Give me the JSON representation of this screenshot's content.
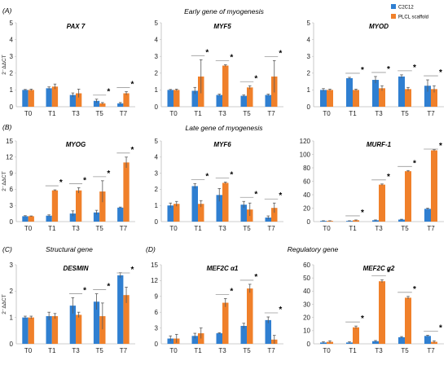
{
  "section_labels": {
    "A": "(A)",
    "B": "(B)",
    "C": "(C)",
    "D": "(D)"
  },
  "section_titles": {
    "A": "Early gene of myogenesis",
    "B": "Late gene of myogenesis",
    "C": "Structural gene",
    "D": "Regulatory gene"
  },
  "y_axis_label": "2⁻ΔΔCT",
  "legend": [
    {
      "name": "C2C12",
      "color": "#2f7fd1"
    },
    {
      "name": "PLCL scaffold",
      "color": "#f0802a"
    }
  ],
  "colors": {
    "c2c12": "#2f7fd1",
    "plcl": "#f0802a",
    "error": "#595959",
    "sig_line": "#9a9a9a"
  },
  "chart_data": [
    {
      "id": "pax7",
      "type": "bar",
      "title": "PAX 7",
      "categories": [
        "T0",
        "T1",
        "T3",
        "T5",
        "T7"
      ],
      "ylim": [
        0,
        5
      ],
      "yticks": [
        0,
        1,
        2,
        3,
        4,
        5
      ],
      "series": [
        {
          "name": "C2C12",
          "values": [
            1.0,
            1.1,
            0.7,
            0.35,
            0.2
          ],
          "errors": [
            0.03,
            0.08,
            0.12,
            0.1,
            0.05
          ]
        },
        {
          "name": "PLCL scaffold",
          "values": [
            1.0,
            1.2,
            0.8,
            0.2,
            0.8
          ],
          "errors": [
            0.05,
            0.15,
            0.25,
            0.05,
            0.1
          ]
        }
      ],
      "significant": [
        false,
        false,
        false,
        true,
        true
      ]
    },
    {
      "id": "myf5",
      "type": "bar",
      "title": "MYF5",
      "categories": [
        "T0",
        "T1",
        "T3",
        "T5",
        "T7"
      ],
      "ylim": [
        0,
        5
      ],
      "yticks": [
        0,
        1,
        2,
        3,
        4,
        5
      ],
      "series": [
        {
          "name": "C2C12",
          "values": [
            1.0,
            0.95,
            0.7,
            0.65,
            0.7
          ],
          "errors": [
            0.03,
            0.2,
            0.05,
            0.05,
            0.05
          ]
        },
        {
          "name": "PLCL scaffold",
          "values": [
            1.0,
            1.8,
            2.45,
            1.15,
            1.8
          ],
          "errors": [
            0.05,
            1.0,
            0.05,
            0.1,
            0.95
          ]
        }
      ],
      "significant": [
        false,
        true,
        true,
        true,
        true
      ]
    },
    {
      "id": "myod",
      "type": "bar",
      "title": "MYOD",
      "categories": [
        "T0",
        "T1",
        "T3",
        "T5",
        "T7"
      ],
      "ylim": [
        0,
        5
      ],
      "yticks": [
        0,
        1,
        2,
        3,
        4,
        5
      ],
      "series": [
        {
          "name": "C2C12",
          "values": [
            1.0,
            1.7,
            1.6,
            1.8,
            1.25
          ],
          "errors": [
            0.08,
            0.05,
            0.2,
            0.1,
            0.35
          ]
        },
        {
          "name": "PLCL scaffold",
          "values": [
            1.0,
            1.0,
            1.1,
            1.05,
            1.05
          ],
          "errors": [
            0.05,
            0.05,
            0.15,
            0.1,
            0.2
          ]
        }
      ],
      "significant": [
        false,
        true,
        true,
        true,
        true
      ]
    },
    {
      "id": "myog",
      "type": "bar",
      "title": "MYOG",
      "categories": [
        "T0",
        "T1",
        "T3",
        "T5",
        "T7"
      ],
      "ylim": [
        0,
        15
      ],
      "yticks": [
        0,
        3,
        6,
        9,
        12,
        15
      ],
      "series": [
        {
          "name": "C2C12",
          "values": [
            1.0,
            1.1,
            1.5,
            1.7,
            2.6
          ],
          "errors": [
            0.1,
            0.15,
            0.5,
            0.4,
            0.1
          ]
        },
        {
          "name": "PLCL scaffold",
          "values": [
            1.0,
            5.8,
            5.8,
            5.6,
            11.0
          ],
          "errors": [
            0.05,
            0.1,
            0.5,
            2.0,
            1.0
          ]
        }
      ],
      "significant": [
        false,
        true,
        true,
        true,
        true
      ]
    },
    {
      "id": "myf6",
      "type": "bar",
      "title": "MYF6",
      "categories": [
        "T0",
        "T1",
        "T3",
        "T5",
        "T7"
      ],
      "ylim": [
        0,
        5
      ],
      "yticks": [
        0,
        1,
        2,
        3,
        4,
        5
      ],
      "series": [
        {
          "name": "C2C12",
          "values": [
            1.0,
            2.2,
            1.65,
            1.05,
            0.25
          ],
          "errors": [
            0.15,
            0.15,
            0.4,
            0.2,
            0.1
          ]
        },
        {
          "name": "PLCL scaffold",
          "values": [
            1.1,
            1.1,
            2.4,
            0.75,
            0.85
          ],
          "errors": [
            0.15,
            0.2,
            0.05,
            0.4,
            0.3
          ]
        }
      ],
      "significant": [
        false,
        true,
        true,
        true,
        true
      ]
    },
    {
      "id": "murf1",
      "type": "bar",
      "title": "MURF-1",
      "categories": [
        "T0",
        "T1",
        "T3",
        "T5",
        "T7"
      ],
      "ylim": [
        0,
        120
      ],
      "yticks": [
        0,
        20,
        40,
        60,
        80,
        100,
        120
      ],
      "series": [
        {
          "name": "C2C12",
          "values": [
            1,
            1,
            2,
            3,
            19
          ],
          "errors": [
            0.3,
            0.3,
            0.5,
            0.5,
            1
          ]
        },
        {
          "name": "PLCL scaffold",
          "values": [
            1,
            2,
            55,
            75,
            106
          ],
          "errors": [
            0.3,
            0.5,
            1,
            1,
            1
          ]
        }
      ],
      "significant": [
        false,
        true,
        true,
        true,
        true
      ]
    },
    {
      "id": "desmin",
      "type": "bar",
      "title": "DESMIN",
      "categories": [
        "T0",
        "T1",
        "T3",
        "T5",
        "T7"
      ],
      "ylim": [
        0,
        3
      ],
      "yticks": [
        0,
        1,
        2,
        3
      ],
      "series": [
        {
          "name": "C2C12",
          "values": [
            1.0,
            1.05,
            1.45,
            1.6,
            2.6
          ],
          "errors": [
            0.05,
            0.15,
            0.3,
            0.3,
            0.1
          ]
        },
        {
          "name": "PLCL scaffold",
          "values": [
            1.0,
            1.05,
            1.1,
            1.05,
            1.85
          ],
          "errors": [
            0.05,
            0.1,
            0.1,
            0.5,
            0.3
          ]
        }
      ],
      "significant": [
        false,
        false,
        true,
        true,
        true
      ]
    },
    {
      "id": "mef2c_a1",
      "type": "bar",
      "title": "MEF2C α1",
      "categories": [
        "T0",
        "T1",
        "T3",
        "T5",
        "T7"
      ],
      "ylim": [
        0,
        15
      ],
      "yticks": [
        0,
        3,
        6,
        9,
        12,
        15
      ],
      "series": [
        {
          "name": "C2C12",
          "values": [
            1.0,
            1.5,
            2.0,
            3.4,
            4.5
          ],
          "errors": [
            0.5,
            0.5,
            0.1,
            0.5,
            0.6
          ]
        },
        {
          "name": "PLCL scaffold",
          "values": [
            1.0,
            2.0,
            7.8,
            10.5,
            0.8
          ],
          "errors": [
            0.8,
            1.0,
            0.8,
            0.8,
            0.8
          ]
        }
      ],
      "significant": [
        false,
        false,
        true,
        true,
        true
      ]
    },
    {
      "id": "mef2c_a2",
      "type": "bar",
      "title": "MEF2C α2",
      "categories": [
        "T0",
        "T1",
        "T3",
        "T5",
        "T7"
      ],
      "ylim": [
        0,
        60
      ],
      "yticks": [
        0,
        10,
        20,
        30,
        40,
        50,
        60
      ],
      "series": [
        {
          "name": "C2C12",
          "values": [
            1,
            1,
            2,
            5,
            6
          ],
          "errors": [
            0.5,
            0.5,
            0.5,
            0.5,
            0.5
          ]
        },
        {
          "name": "PLCL scaffold",
          "values": [
            1.5,
            12.5,
            47.5,
            35,
            1.5
          ],
          "errors": [
            0.8,
            1,
            1,
            1,
            0.8
          ]
        }
      ],
      "significant": [
        false,
        true,
        true,
        true,
        true
      ]
    }
  ]
}
